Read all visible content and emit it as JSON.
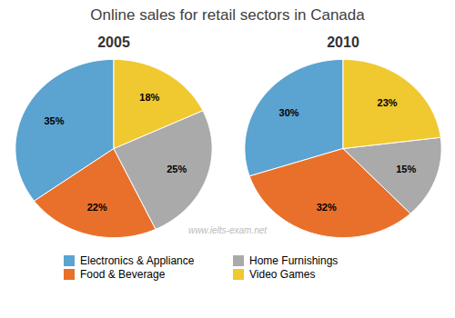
{
  "chart_data": {
    "type": "pie",
    "title": "Online sales for retail sectors in Canada",
    "categories": [
      "Electronics & Appliance",
      "Food & Beverage",
      "Home Furnishings",
      "Video Games"
    ],
    "colors": [
      "#5BA3D0",
      "#E8702A",
      "#AAAAAA",
      "#F0C830"
    ],
    "series": [
      {
        "name": "2005",
        "values": [
          35,
          22,
          25,
          18
        ],
        "value_labels": [
          "35%",
          "22%",
          "25%",
          "18%"
        ]
      },
      {
        "name": "2010",
        "values": [
          30,
          32,
          15,
          23
        ],
        "value_labels": [
          "30%",
          "32%",
          "15%",
          "23%"
        ]
      }
    ],
    "annotations": [
      "www.ielts-exam.net"
    ],
    "data_labels": true,
    "legend": "bottom"
  }
}
